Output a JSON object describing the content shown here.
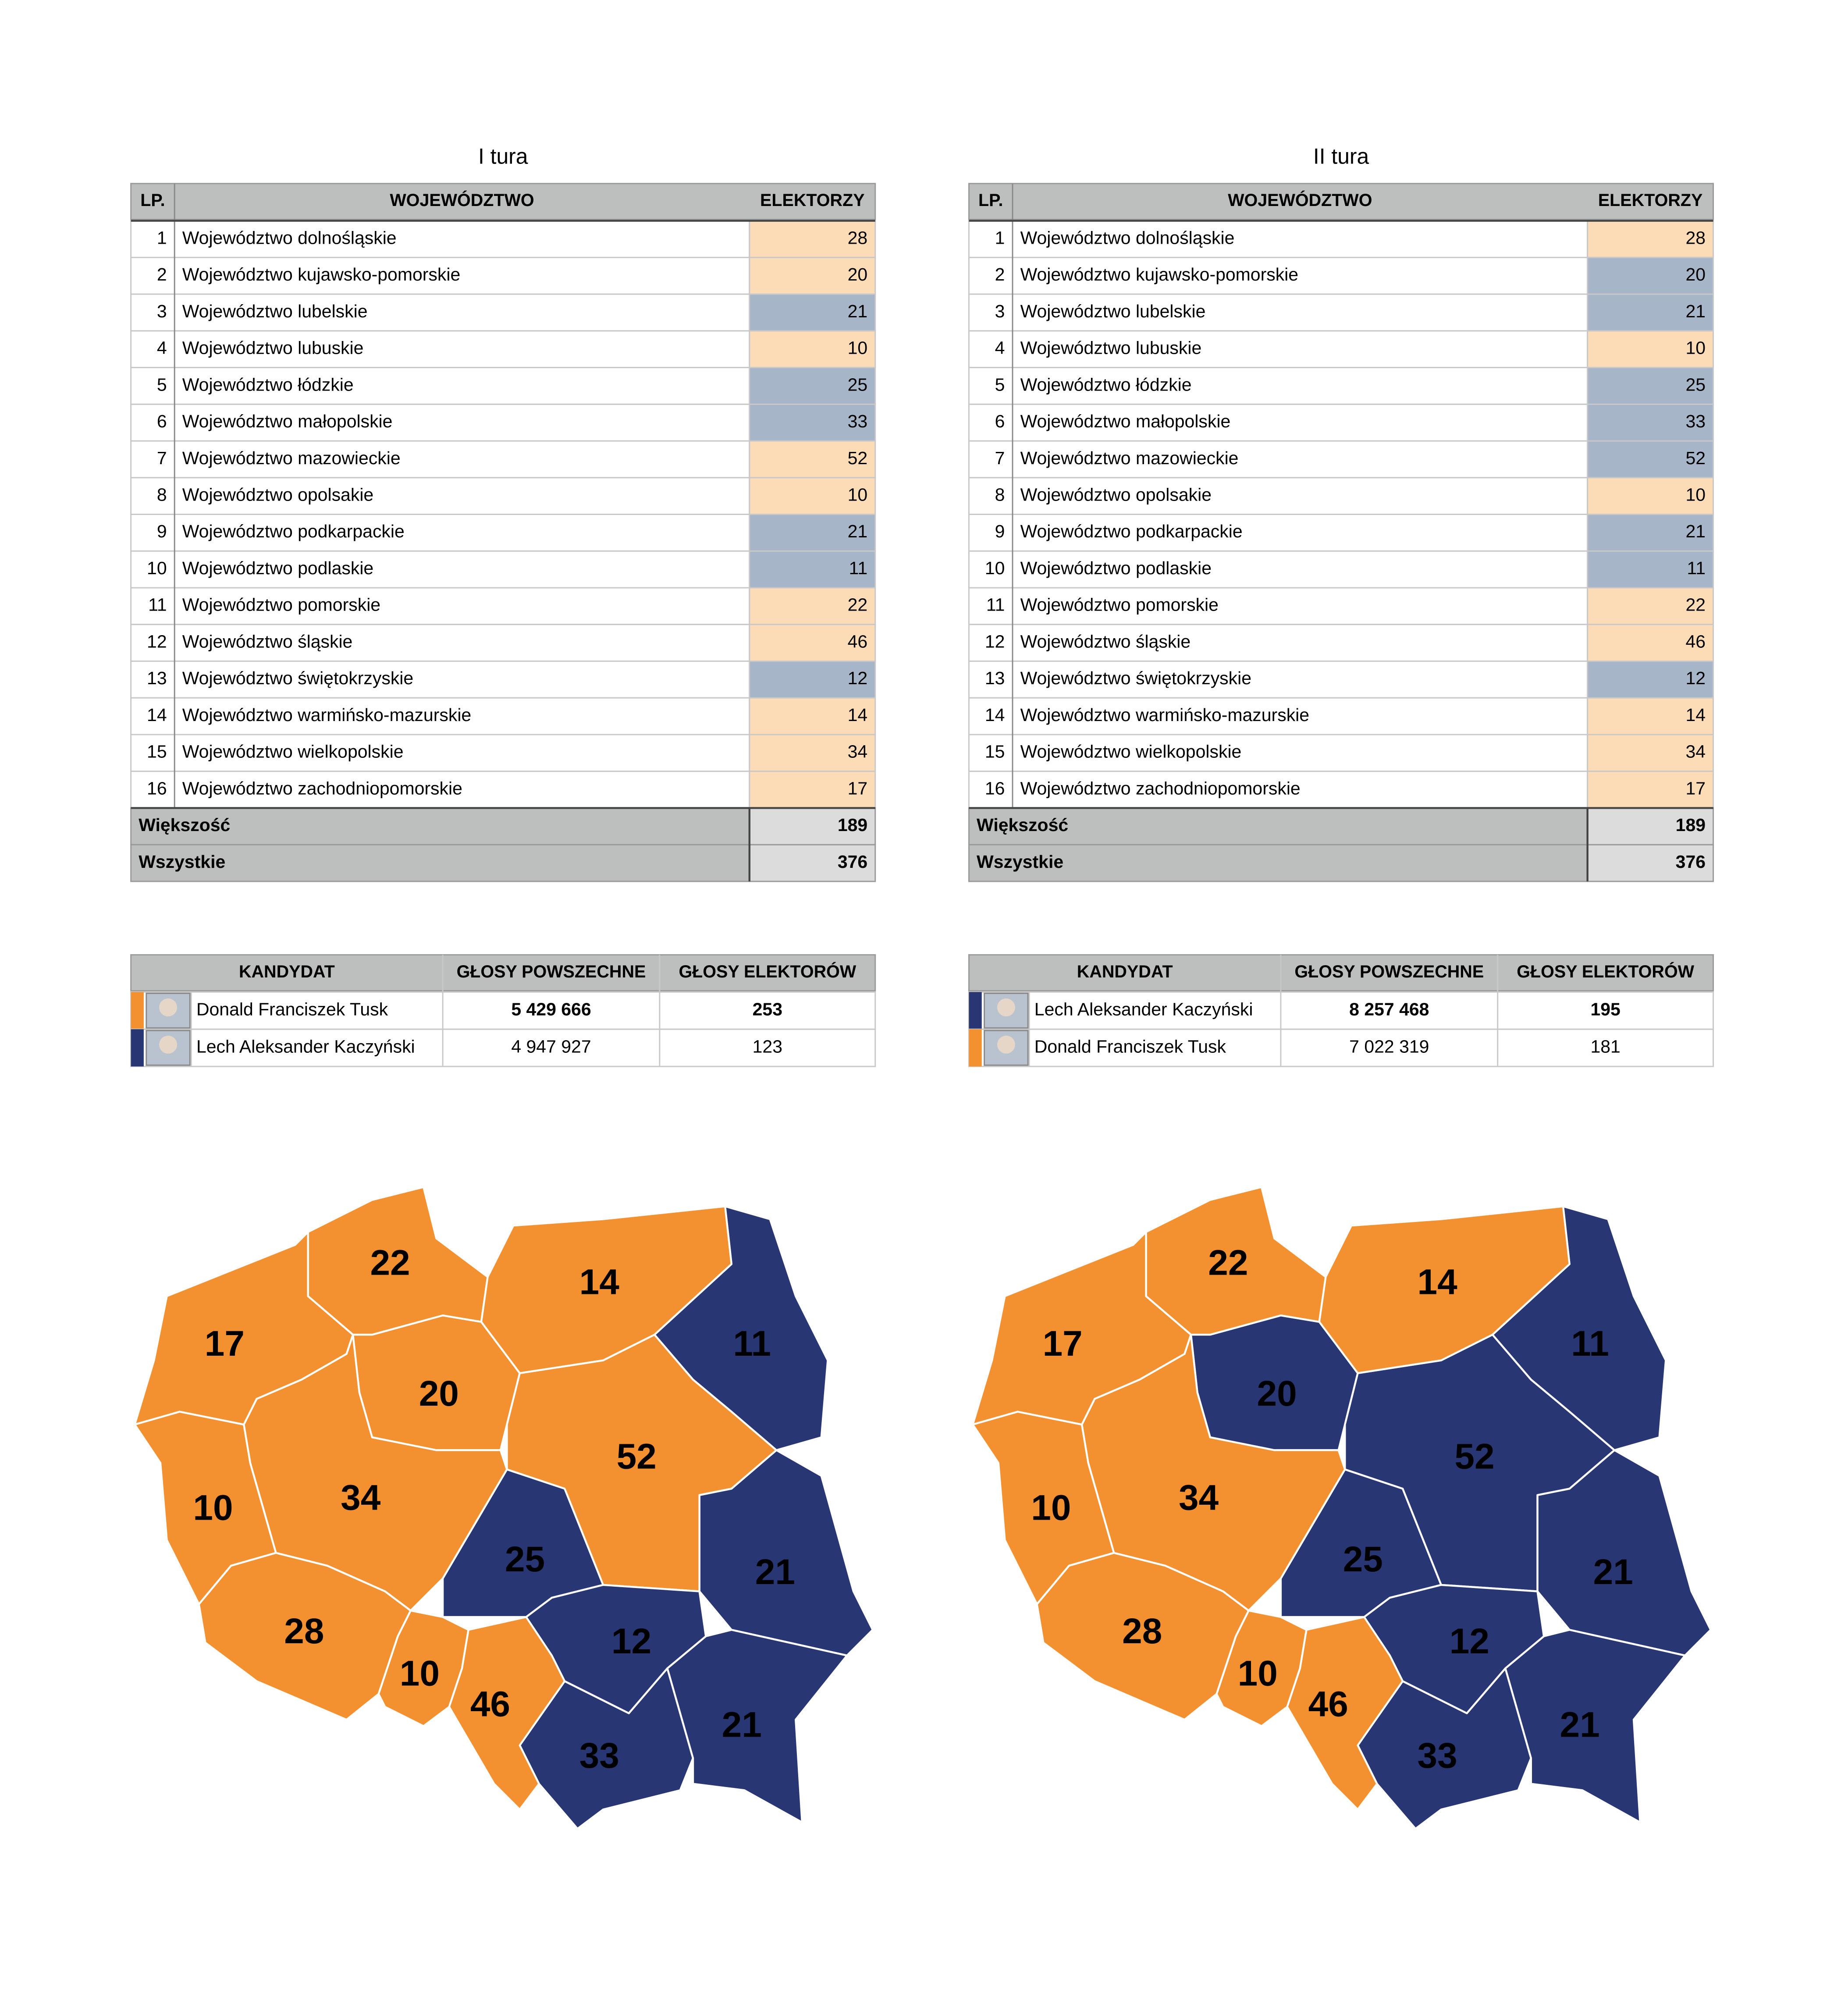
{
  "palette": {
    "orange": {
      "cell": "#fcdcb6",
      "map": "#f39130"
    },
    "blue": {
      "cell": "#a7b5c8",
      "map": "#283673"
    }
  },
  "panels": [
    {
      "title": "I tura",
      "table": {
        "headers": [
          "LP.",
          "WOJEWÓDZTWO",
          "ELEKTORZY"
        ],
        "rows": [
          [
            1,
            "Województwo dolnośląskie",
            28,
            "orange"
          ],
          [
            2,
            "Województwo kujawsko-pomorskie",
            20,
            "orange"
          ],
          [
            3,
            "Województwo lubelskie",
            21,
            "blue"
          ],
          [
            4,
            "Województwo lubuskie",
            10,
            "orange"
          ],
          [
            5,
            "Województwo łódzkie",
            25,
            "blue"
          ],
          [
            6,
            "Województwo małopolskie",
            33,
            "blue"
          ],
          [
            7,
            "Województwo mazowieckie",
            52,
            "orange"
          ],
          [
            8,
            "Województwo opolsakie",
            10,
            "orange"
          ],
          [
            9,
            "Województwo podkarpackie",
            21,
            "blue"
          ],
          [
            10,
            "Województwo podlaskie",
            11,
            "blue"
          ],
          [
            11,
            "Województwo pomorskie",
            22,
            "orange"
          ],
          [
            12,
            "Województwo śląskie",
            46,
            "orange"
          ],
          [
            13,
            "Województwo świętokrzyskie",
            12,
            "blue"
          ],
          [
            14,
            "Województwo warmińsko-mazurskie",
            14,
            "orange"
          ],
          [
            15,
            "Województwo wielkopolskie",
            34,
            "orange"
          ],
          [
            16,
            "Województwo zachodniopomorskie",
            17,
            "orange"
          ]
        ],
        "summary": [
          [
            "Większość",
            189
          ],
          [
            "Wszystkie",
            376
          ]
        ]
      },
      "candidates": {
        "headers": [
          "KANDYDAT",
          "GŁOSY POWSZECHNE",
          "GŁOSY ELEKTORÓW"
        ],
        "rows": [
          {
            "name": "Donald Franciszek Tusk",
            "popular": "5 429 666",
            "electoral": 253,
            "party": "orange"
          },
          {
            "name": "Lech Aleksander Kaczyński",
            "popular": "4 947 927",
            "electoral": 123,
            "party": "blue"
          }
        ]
      }
    },
    {
      "title": "II tura",
      "table": {
        "headers": [
          "LP.",
          "WOJEWÓDZTWO",
          "ELEKTORZY"
        ],
        "rows": [
          [
            1,
            "Województwo dolnośląskie",
            28,
            "orange"
          ],
          [
            2,
            "Województwo kujawsko-pomorskie",
            20,
            "blue"
          ],
          [
            3,
            "Województwo lubelskie",
            21,
            "blue"
          ],
          [
            4,
            "Województwo lubuskie",
            10,
            "orange"
          ],
          [
            5,
            "Województwo łódzkie",
            25,
            "blue"
          ],
          [
            6,
            "Województwo małopolskie",
            33,
            "blue"
          ],
          [
            7,
            "Województwo mazowieckie",
            52,
            "blue"
          ],
          [
            8,
            "Województwo opolsakie",
            10,
            "orange"
          ],
          [
            9,
            "Województwo podkarpackie",
            21,
            "blue"
          ],
          [
            10,
            "Województwo podlaskie",
            11,
            "blue"
          ],
          [
            11,
            "Województwo pomorskie",
            22,
            "orange"
          ],
          [
            12,
            "Województwo śląskie",
            46,
            "orange"
          ],
          [
            13,
            "Województwo świętokrzyskie",
            12,
            "blue"
          ],
          [
            14,
            "Województwo warmińsko-mazurskie",
            14,
            "orange"
          ],
          [
            15,
            "Województwo wielkopolskie",
            34,
            "orange"
          ],
          [
            16,
            "Województwo zachodniopomorskie",
            17,
            "orange"
          ]
        ],
        "summary": [
          [
            "Większość",
            189
          ],
          [
            "Wszystkie",
            376
          ]
        ]
      },
      "candidates": {
        "headers": [
          "KANDYDAT",
          "GŁOSY POWSZECHNE",
          "GŁOSY ELEKTORÓW"
        ],
        "rows": [
          {
            "name": "Lech Aleksander Kaczyński",
            "popular": "8 257 468",
            "electoral": 195,
            "party": "blue"
          },
          {
            "name": "Donald Franciszek Tusk",
            "popular": "7 022 319",
            "electoral": 181,
            "party": "orange"
          }
        ]
      }
    }
  ]
}
